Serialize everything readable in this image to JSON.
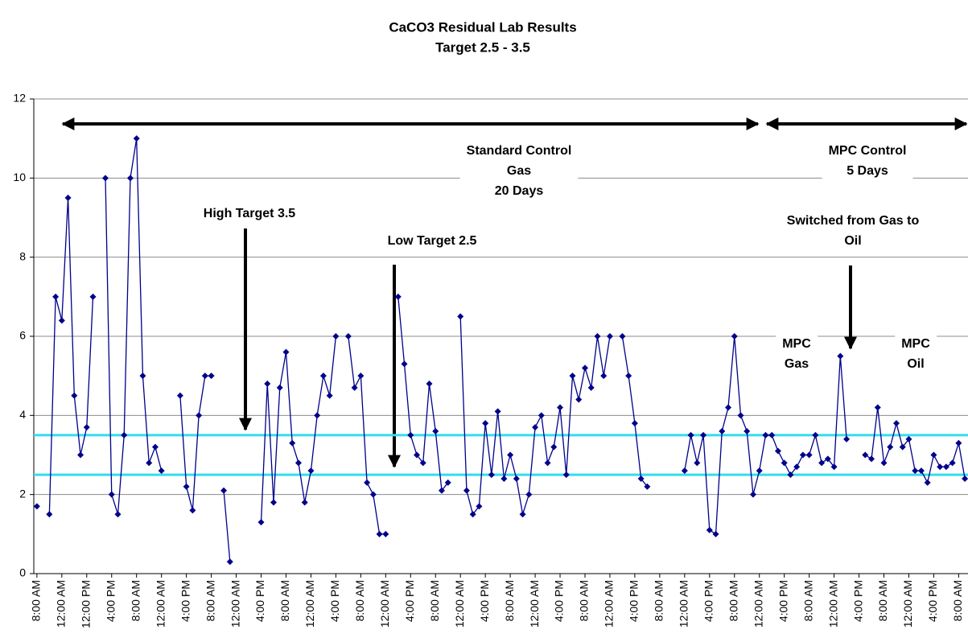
{
  "chart_data": {
    "type": "line",
    "title": [
      "CaCO3 Residual Lab Results",
      "Target 2.5 - 3.5"
    ],
    "categories": [
      "8:00 AM",
      null,
      null,
      null,
      "12:00 AM",
      null,
      null,
      null,
      "12:00 PM",
      null,
      null,
      null,
      "4:00 PM",
      null,
      null,
      null,
      "8:00 AM",
      null,
      null,
      null,
      "12:00 AM",
      null,
      null,
      null,
      "4:00 PM",
      null,
      null,
      null,
      "8:00 AM",
      null,
      null,
      null,
      "12:00 AM",
      null,
      null,
      null,
      "4:00 PM",
      null,
      null,
      null,
      "8:00 AM",
      null,
      null,
      null,
      "12:00 AM",
      null,
      null,
      null,
      "4:00 PM",
      null,
      null,
      null,
      "8:00 AM",
      null,
      null,
      null,
      "12:00 AM",
      null,
      null,
      null,
      "4:00 PM",
      null,
      null,
      null,
      "8:00 AM",
      null,
      null,
      null,
      "12:00 AM",
      null,
      null,
      null,
      "4:00 PM",
      null,
      null,
      null,
      "8:00 AM",
      null,
      null,
      null,
      "12:00 AM",
      null,
      null,
      null,
      "4:00 PM",
      null,
      null,
      null,
      "8:00 AM",
      null,
      null,
      null,
      "12:00 AM",
      null,
      null,
      null,
      "4:00 PM",
      null,
      null,
      null,
      "8:00 AM",
      null,
      null,
      null,
      "12:00 AM",
      null,
      null,
      null,
      "4:00 PM",
      null,
      null,
      null,
      "8:00 AM",
      null,
      null,
      null,
      "12:00 AM",
      null,
      null,
      null,
      "4:00 PM",
      null,
      null,
      null,
      "8:00 AM",
      null,
      null,
      null,
      "12:00 AM",
      null,
      null,
      null,
      "4:00 PM",
      null,
      null,
      null,
      "8:00 AM",
      null,
      null,
      null,
      "12:00 AM",
      null,
      null,
      null,
      "4:00 PM",
      null,
      null,
      null,
      "8:00 AM",
      null
    ],
    "values": [
      1.7,
      null,
      1.5,
      7.0,
      6.4,
      9.5,
      4.5,
      3.0,
      3.7,
      7.0,
      null,
      10,
      2,
      1.5,
      3.5,
      10,
      11,
      5,
      2.8,
      3.2,
      2.6,
      null,
      null,
      4.5,
      2.2,
      1.6,
      4,
      5,
      5,
      null,
      2.1,
      0.3,
      null,
      null,
      null,
      null,
      1.3,
      4.8,
      1.8,
      4.7,
      5.6,
      3.3,
      2.8,
      1.8,
      2.6,
      4,
      5,
      4.5,
      6,
      null,
      6,
      4.7,
      5,
      2.3,
      2,
      1,
      1,
      null,
      7,
      5.3,
      3.5,
      3,
      2.8,
      4.8,
      3.6,
      2.1,
      2.3,
      null,
      6.5,
      2.1,
      1.5,
      1.7,
      3.8,
      2.5,
      4.1,
      2.4,
      3,
      2.4,
      1.5,
      2,
      3.7,
      4,
      2.8,
      3.2,
      4.2,
      2.5,
      5,
      4.4,
      5.2,
      4.7,
      6,
      5,
      6,
      null,
      6,
      5,
      3.8,
      2.4,
      2.2,
      null,
      null,
      null,
      null,
      null,
      2.6,
      3.5,
      2.8,
      3.5,
      1.1,
      1,
      3.6,
      4.2,
      6,
      4,
      3.6,
      2,
      2.6,
      3.5,
      3.5,
      3.1,
      2.8,
      2.5,
      2.7,
      3,
      3,
      3.5,
      2.8,
      2.9,
      2.7,
      5.5,
      3.4,
      null,
      null,
      3,
      2.9,
      4.2,
      2.8,
      3.2,
      3.8,
      3.2,
      3.4,
      2.6,
      2.6,
      2.3,
      3,
      2.7,
      2.7,
      2.8,
      3.3,
      2.4
    ],
    "color": "#00008b",
    "reference_lines": [
      3.5,
      2.5
    ],
    "reference_color": "#33ddee",
    "ylim": [
      0,
      12
    ],
    "yticks": [
      0,
      2,
      4,
      6,
      8,
      10,
      12
    ],
    "grid": true,
    "annotations": [
      [
        "Standard Control",
        "Gas",
        "20 Days"
      ],
      [
        "MPC Control",
        "5 Days"
      ],
      [
        "High Target 3.5"
      ],
      [
        "Low Target 2.5"
      ],
      [
        "Switched from Gas to",
        "Oil"
      ],
      [
        "MPC",
        "Gas"
      ],
      [
        "MPC",
        "Oil"
      ]
    ]
  }
}
